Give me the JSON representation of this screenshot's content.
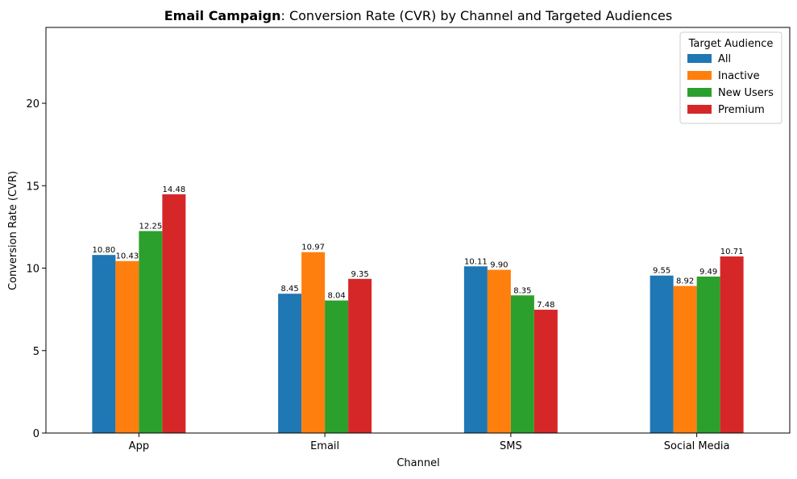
{
  "chart_data": {
    "type": "bar",
    "title_bold": "Email Campaign",
    "title_rest": ": Conversion Rate (CVR) by Channel and Targeted Audiences",
    "xlabel": "Channel",
    "ylabel": "Conversion Rate (CVR)",
    "ylim": [
      0,
      24.6
    ],
    "yticks": [
      "0",
      "5",
      "10",
      "15",
      "20"
    ],
    "categories": [
      "App",
      "Email",
      "SMS",
      "Social Media"
    ],
    "legend": {
      "title": "Target Audience",
      "placement": "top-right"
    },
    "grid": false,
    "series": [
      {
        "name": "All",
        "color": "#1f77b4",
        "values": [
          10.8,
          8.45,
          10.11,
          9.55
        ],
        "labels": [
          "10.80",
          "8.45",
          "10.11",
          "9.55"
        ]
      },
      {
        "name": "Inactive",
        "color": "#ff7f0e",
        "values": [
          10.43,
          10.97,
          9.9,
          8.92
        ],
        "labels": [
          "10.43",
          "10.97",
          "9.90",
          "8.92"
        ]
      },
      {
        "name": "New Users",
        "color": "#2ca02c",
        "values": [
          12.25,
          8.04,
          8.35,
          9.49
        ],
        "labels": [
          "12.25",
          "8.04",
          "8.35",
          "9.49"
        ]
      },
      {
        "name": "Premium",
        "color": "#d62728",
        "values": [
          14.48,
          9.35,
          7.48,
          10.71
        ],
        "labels": [
          "14.48",
          "9.35",
          "7.48",
          "10.71"
        ]
      }
    ]
  }
}
